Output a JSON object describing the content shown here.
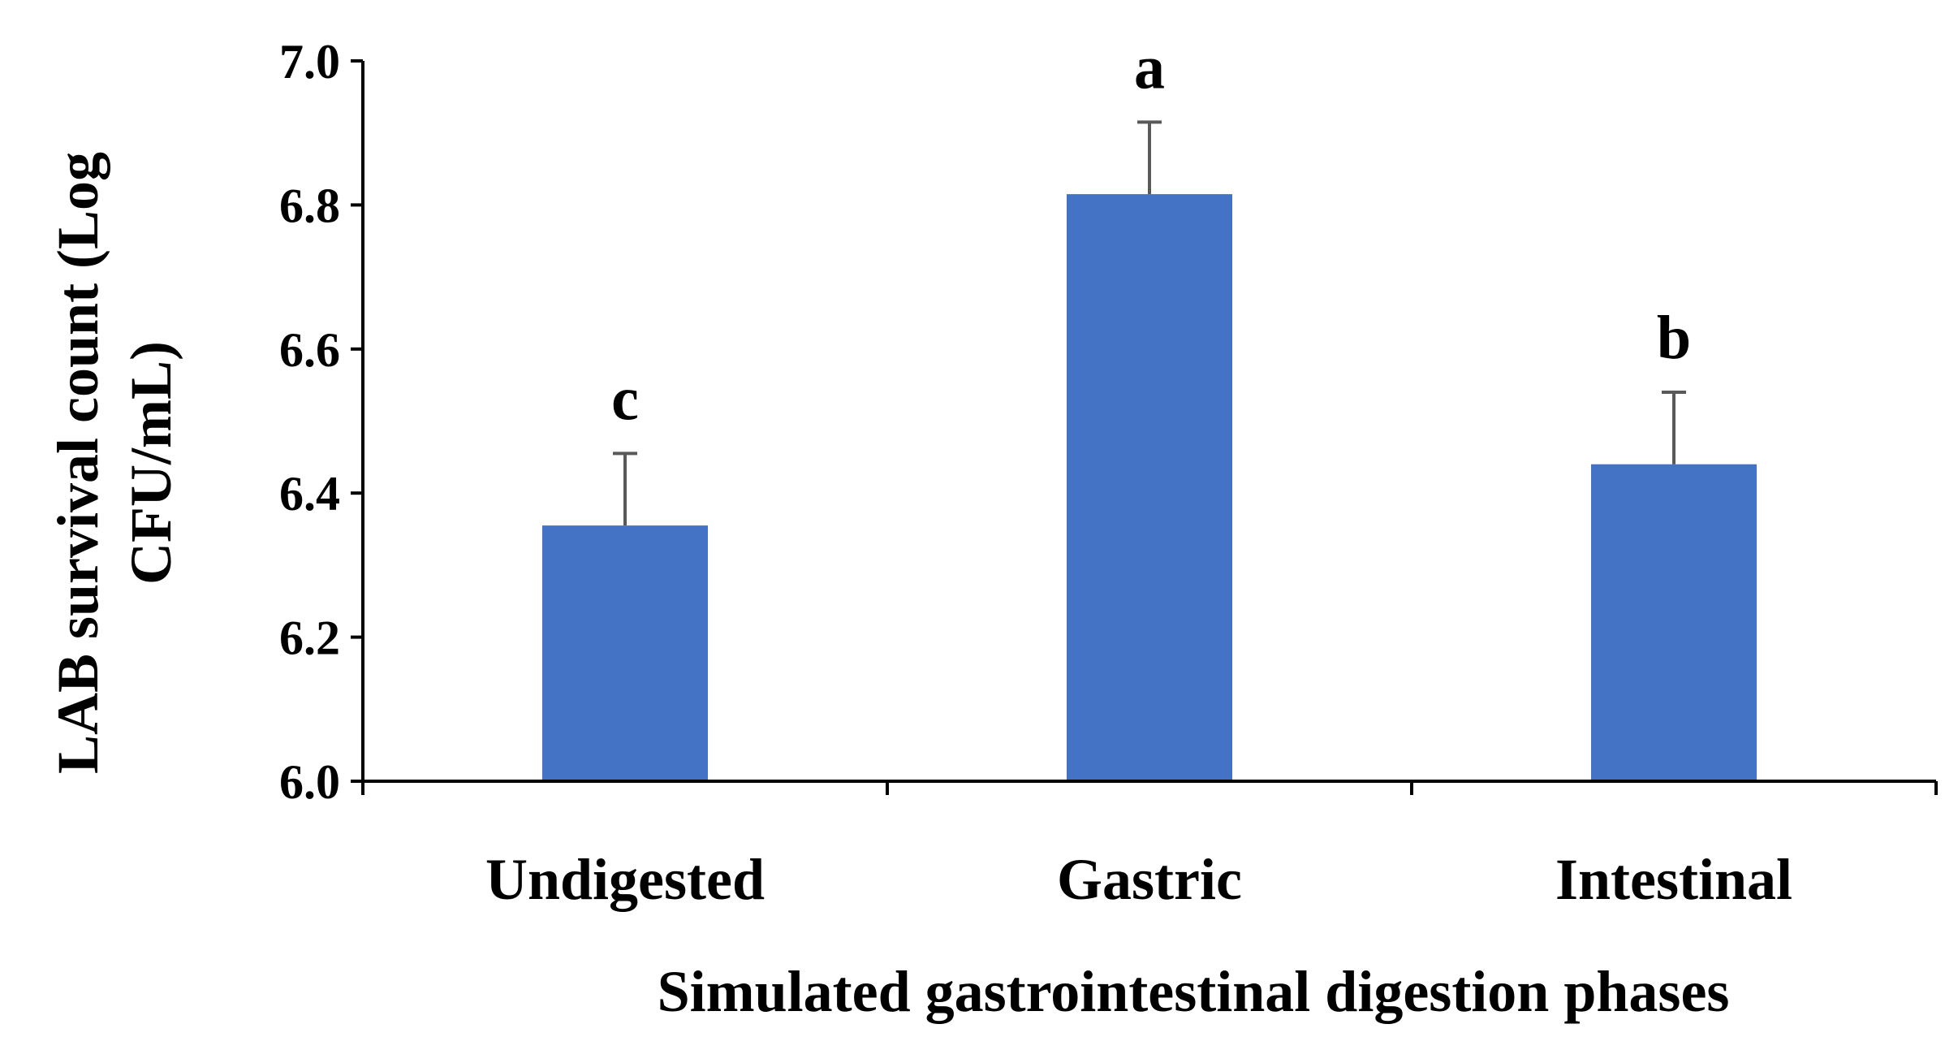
{
  "chart_data": {
    "type": "bar",
    "categories": [
      "Undigested",
      "Gastric",
      "Intestinal"
    ],
    "values": [
      6.355,
      6.815,
      6.44
    ],
    "error": [
      0.1,
      0.1,
      0.1
    ],
    "significance_letters": [
      "c",
      "a",
      "b"
    ],
    "xlabel": "Simulated gastrointestinal digestion phases",
    "ylabel_lines": [
      "LAB survival count (Log",
      "CFU/mL)"
    ],
    "ylim": [
      6.0,
      7.0
    ],
    "yticks": [
      6.0,
      6.2,
      6.4,
      6.6,
      6.8,
      7.0
    ],
    "ytick_labels": [
      "6.0",
      "6.2",
      "6.4",
      "6.6",
      "6.8",
      "7.0"
    ],
    "grid": false,
    "colors": {
      "bar": "#4472C4",
      "error_bar": "#595959",
      "axis": "#000000"
    }
  }
}
